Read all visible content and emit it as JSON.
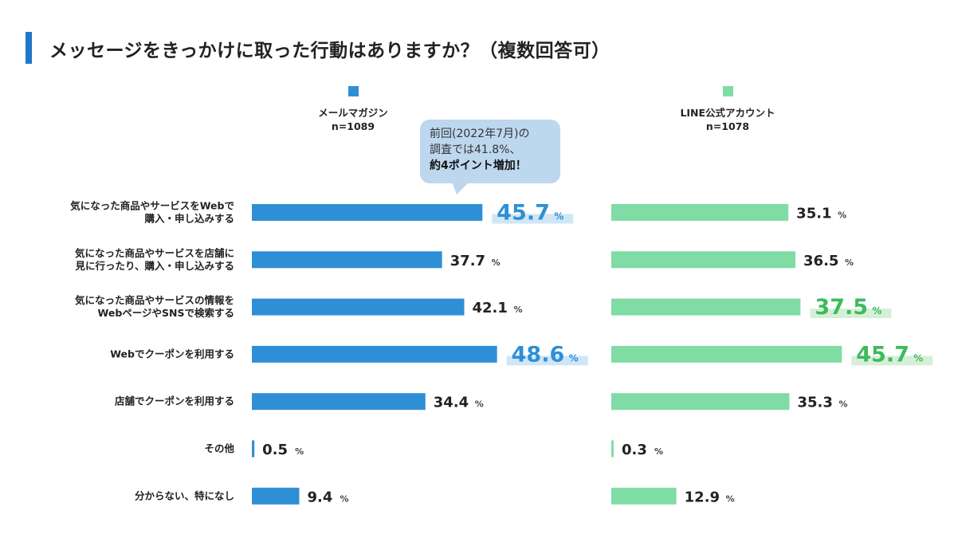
{
  "title": "メッセージをきっかけに取った行動はありますか？（複数回答可）",
  "colors": {
    "accent": "#1f78c8",
    "mail": "#2f8fd6",
    "line": "#7fdca4",
    "mail_highlight_text": "#2f8fd6",
    "line_highlight_text": "#3dbb5c",
    "mail_highlight_bg": "#cfe6f7",
    "line_highlight_bg": "#d6efd9"
  },
  "callout": {
    "line1": "前回(2022年7月)の",
    "line2": "調査では41.8%、",
    "line3": "約4ポイント増加！"
  },
  "chart_data": {
    "type": "bar",
    "orientation": "horizontal",
    "title": "メッセージをきっかけに取った行動はありますか？（複数回答可）",
    "unit": "%",
    "categories": [
      [
        "気になった商品やサービスをWebで",
        "購入・申し込みする"
      ],
      [
        "気になった商品やサービスを店舗に",
        "見に行ったり、購入・申し込みする"
      ],
      [
        "気になった商品やサービスの情報を",
        "WebページやSNSで検索する"
      ],
      [
        "Webでクーポンを利用する"
      ],
      [
        "店舗でクーポンを利用する"
      ],
      [
        "その他"
      ],
      [
        "分からない、特になし"
      ]
    ],
    "series": [
      {
        "name": "メールマガジン",
        "n_label": "n=1089",
        "values": [
          45.7,
          37.7,
          42.1,
          48.6,
          34.4,
          0.5,
          9.4
        ],
        "value_labels": [
          "45.7",
          "37.7",
          "42.1",
          "48.6",
          "34.4",
          "0.5",
          "9.4"
        ],
        "highlight": [
          true,
          false,
          false,
          true,
          false,
          false,
          false
        ]
      },
      {
        "name": "LINE公式アカウント",
        "n_label": "n=1078",
        "values": [
          35.1,
          36.5,
          37.5,
          45.7,
          35.3,
          0.3,
          12.9
        ],
        "value_labels": [
          "35.1",
          "36.5",
          "37.5",
          "45.7",
          "35.3",
          "0.3",
          "12.9"
        ],
        "highlight": [
          false,
          false,
          true,
          true,
          false,
          false,
          false
        ]
      }
    ]
  }
}
